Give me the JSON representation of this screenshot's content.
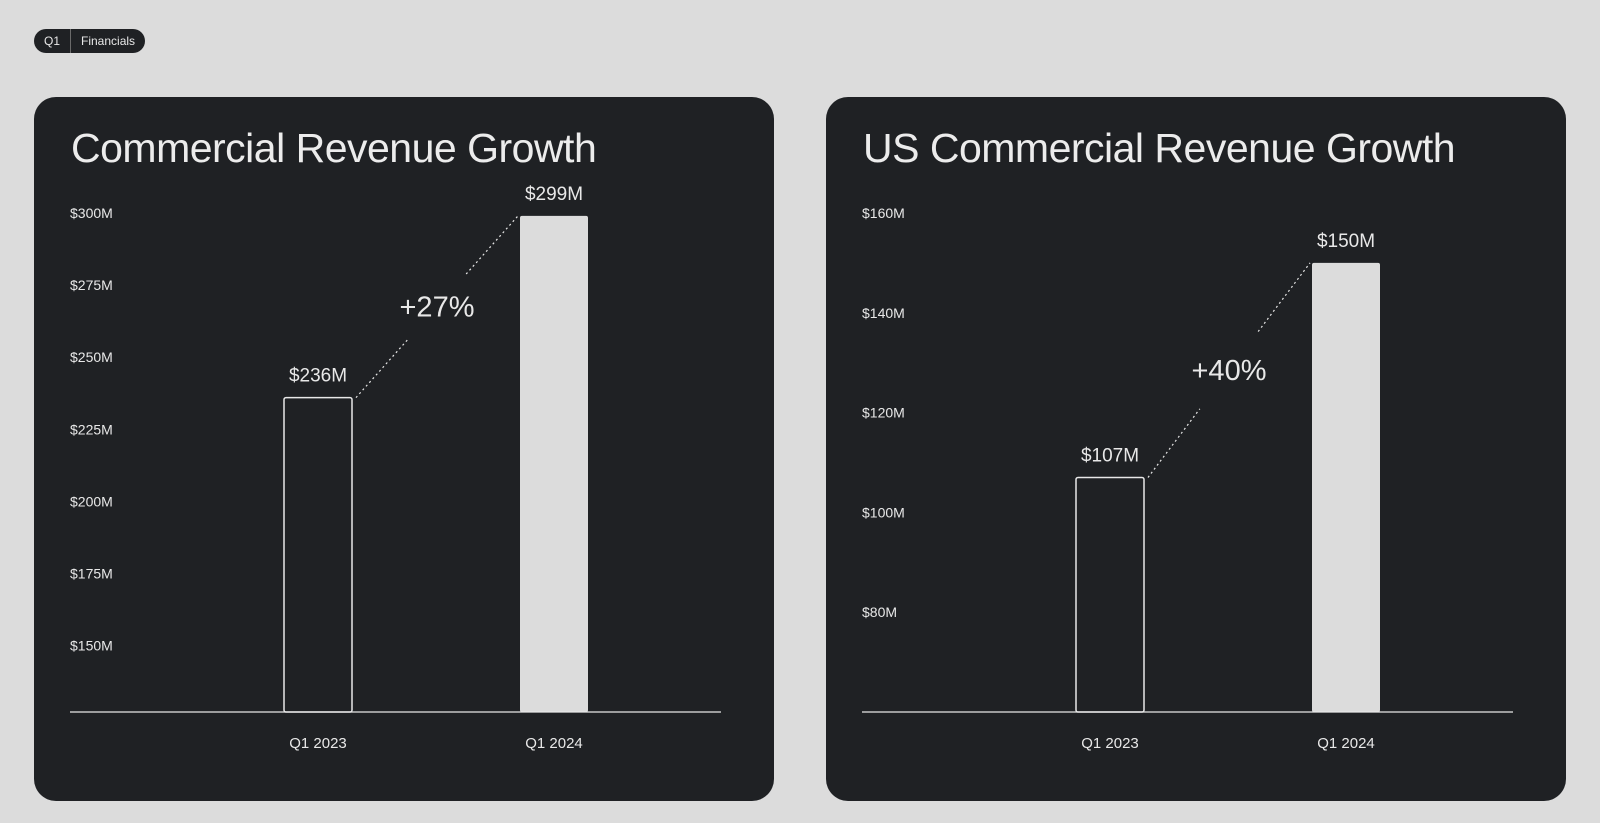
{
  "badge": {
    "left": "Q1",
    "right": "Financials"
  },
  "colors": {
    "background": "#dcdcdc",
    "card": "#1f2124",
    "text": "#e8e8e8",
    "bar_fill": "#dcdcdc"
  },
  "chart_data": [
    {
      "type": "bar",
      "title": "Commercial Revenue Growth",
      "categories": [
        "Q1 2023",
        "Q1 2024"
      ],
      "values": [
        236,
        299
      ],
      "value_labels": [
        "$236M",
        "$299M"
      ],
      "bar_styles": [
        "outline",
        "filled"
      ],
      "yticks": [
        300,
        275,
        250,
        225,
        200,
        175,
        150
      ],
      "ytick_labels": [
        "$300M",
        "$275M",
        "$250M",
        "$225M",
        "$200M",
        "$175M",
        "$150M"
      ],
      "ylim": [
        127,
        300
      ],
      "growth_label": "+27%",
      "xlabel": "",
      "ylabel": "",
      "grid": false
    },
    {
      "type": "bar",
      "title": "US Commercial Revenue Growth",
      "categories": [
        "Q1 2023",
        "Q1 2024"
      ],
      "values": [
        107,
        150
      ],
      "value_labels": [
        "$107M",
        "$150M"
      ],
      "bar_styles": [
        "outline",
        "filled"
      ],
      "yticks": [
        160,
        140,
        120,
        100,
        80
      ],
      "ytick_labels": [
        "$160M",
        "$140M",
        "$120M",
        "$100M",
        "$80M"
      ],
      "ylim": [
        60,
        160
      ],
      "growth_label": "+40%",
      "xlabel": "",
      "ylabel": "",
      "grid": false
    }
  ]
}
